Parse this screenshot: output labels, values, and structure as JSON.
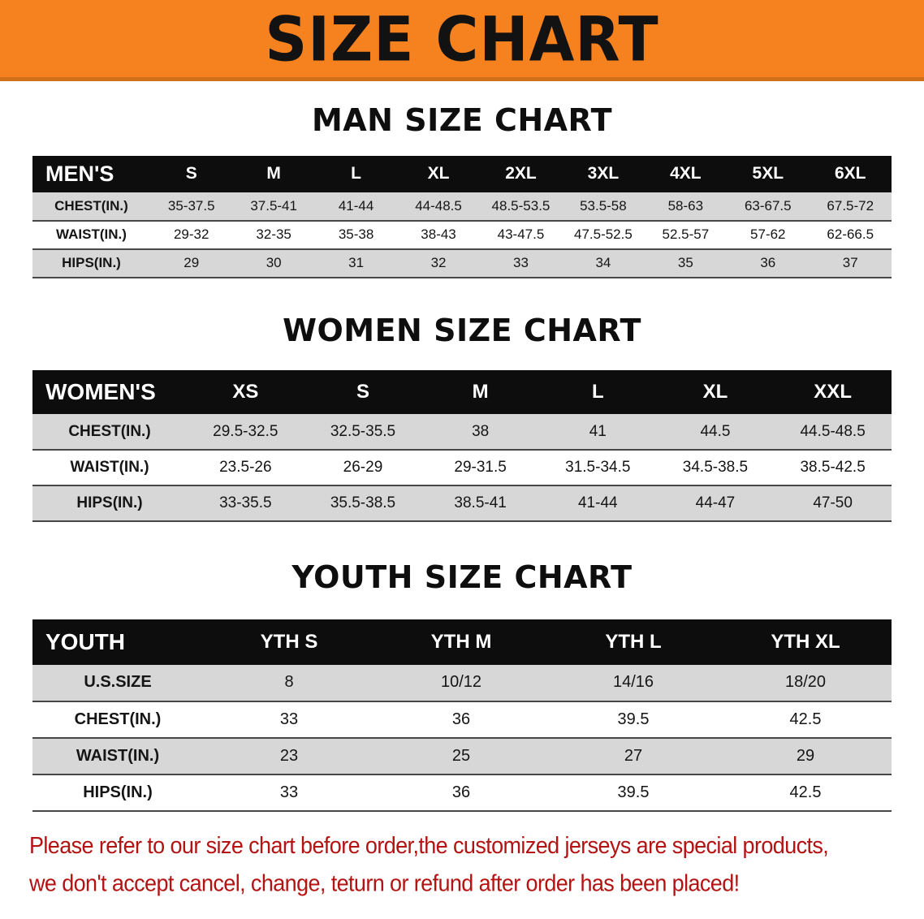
{
  "banner": {
    "title": "SIZE CHART"
  },
  "colors": {
    "banner-bg": "#f5821f",
    "title-text": "#121212",
    "table-header-bg": "#0d0d0d",
    "row-stripe": "#d7d7d7",
    "disclaimer-red": "#b31312"
  },
  "sections": [
    {
      "heading": "MAN SIZE CHART",
      "columns": [
        "MEN'S",
        "S",
        "M",
        "L",
        "XL",
        "2XL",
        "3XL",
        "4XL",
        "5XL",
        "6XL"
      ],
      "rows": [
        {
          "label": "CHEST(IN.)",
          "values": [
            "35-37.5",
            "37.5-41",
            "41-44",
            "44-48.5",
            "48.5-53.5",
            "53.5-58",
            "58-63",
            "63-67.5",
            "67.5-72"
          ]
        },
        {
          "label": "WAIST(IN.)",
          "values": [
            "29-32",
            "32-35",
            "35-38",
            "38-43",
            "43-47.5",
            "47.5-52.5",
            "52.5-57",
            "57-62",
            "62-66.5"
          ]
        },
        {
          "label": "HIPS(IN.)",
          "values": [
            "29",
            "30",
            "31",
            "32",
            "33",
            "34",
            "35",
            "36",
            "37"
          ]
        }
      ]
    },
    {
      "heading": "WOMEN SIZE CHART",
      "columns": [
        "WOMEN'S",
        "XS",
        "S",
        "M",
        "L",
        "XL",
        "XXL"
      ],
      "rows": [
        {
          "label": "CHEST(IN.)",
          "values": [
            "29.5-32.5",
            "32.5-35.5",
            "38",
            "41",
            "44.5",
            "44.5-48.5"
          ]
        },
        {
          "label": "WAIST(IN.)",
          "values": [
            "23.5-26",
            "26-29",
            "29-31.5",
            "31.5-34.5",
            "34.5-38.5",
            "38.5-42.5"
          ]
        },
        {
          "label": "HIPS(IN.)",
          "values": [
            "33-35.5",
            "35.5-38.5",
            "38.5-41",
            "41-44",
            "44-47",
            "47-50"
          ]
        }
      ]
    },
    {
      "heading": "YOUTH SIZE CHART",
      "columns": [
        "YOUTH",
        "YTH S",
        "YTH M",
        "YTH L",
        "YTH XL"
      ],
      "rows": [
        {
          "label": "U.S.SIZE",
          "values": [
            "8",
            "10/12",
            "14/16",
            "18/20"
          ]
        },
        {
          "label": "CHEST(IN.)",
          "values": [
            "33",
            "36",
            "39.5",
            "42.5"
          ]
        },
        {
          "label": "WAIST(IN.)",
          "values": [
            "23",
            "25",
            "27",
            "29"
          ]
        },
        {
          "label": "HIPS(IN.)",
          "values": [
            "33",
            "36",
            "39.5",
            "42.5"
          ]
        }
      ]
    }
  ],
  "disclaimer": {
    "lines": [
      "Please refer to our size chart before order,the customized jerseys are special products,",
      "we don't accept cancel, change, teturn or refund after order has been placed!"
    ]
  }
}
